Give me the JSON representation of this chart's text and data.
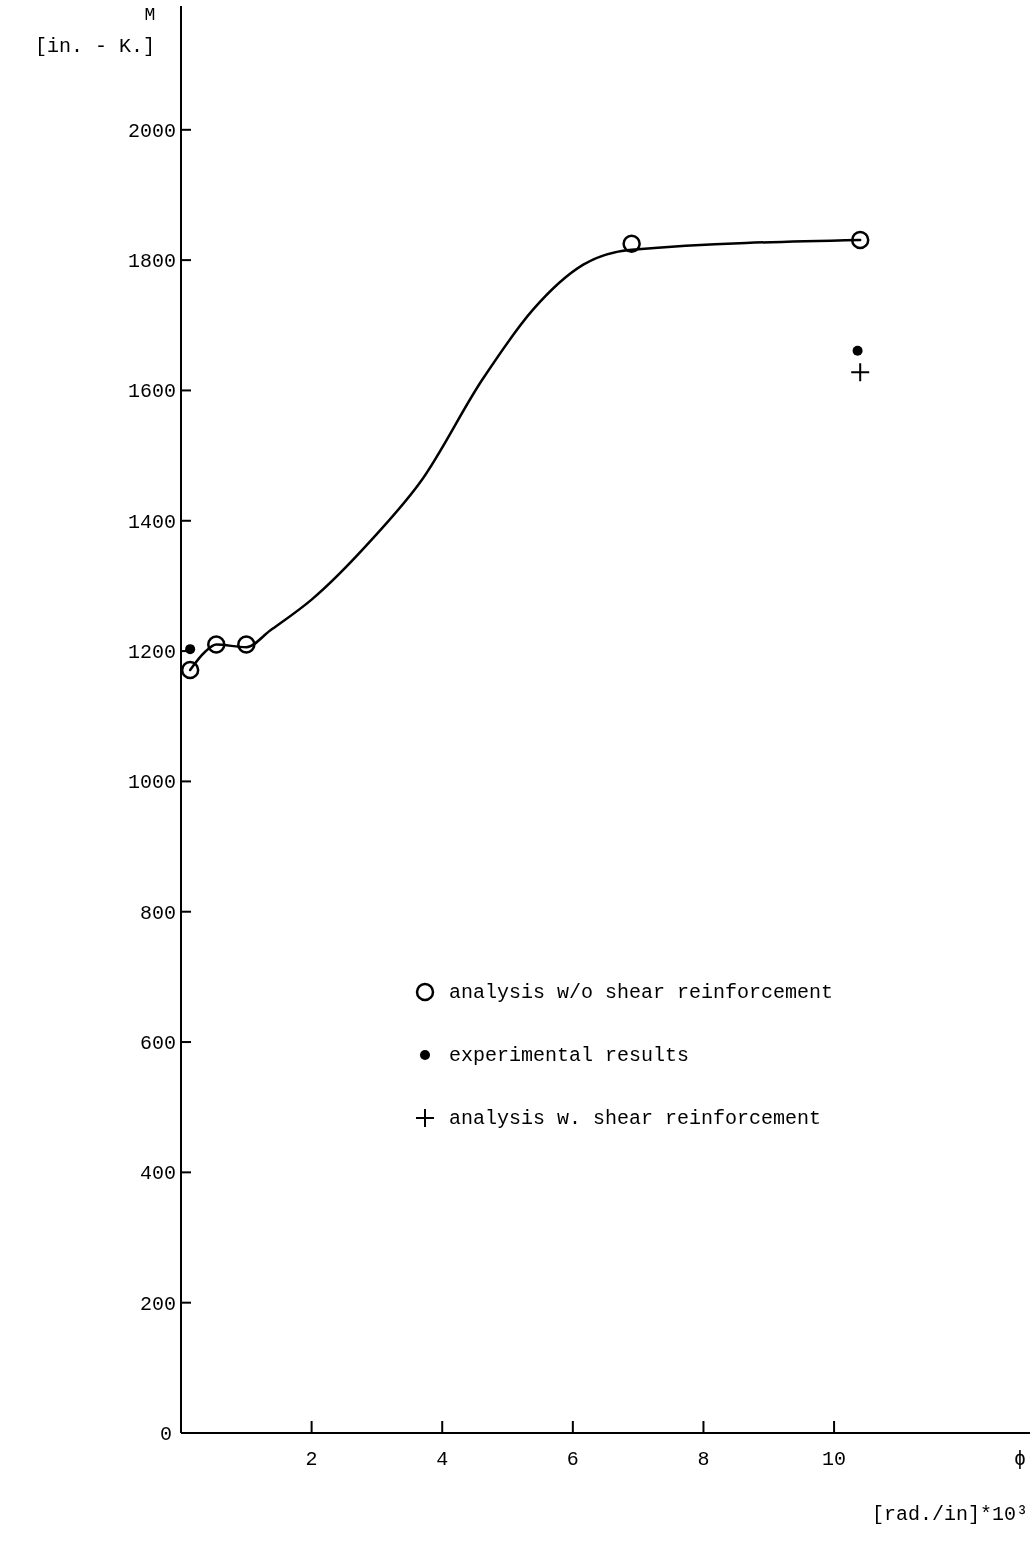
{
  "chart_data": {
    "type": "scatter",
    "xlabel": "ϕ",
    "ylabel": "M",
    "annotations": [
      "[in. - K.]",
      "[rad./in]*10³"
    ],
    "xlim": [
      0,
      13
    ],
    "ylim": [
      0,
      2190
    ],
    "xticks": [
      2,
      4,
      6,
      8,
      10
    ],
    "yticks": [
      0,
      200,
      400,
      600,
      800,
      1000,
      1200,
      1400,
      1600,
      1800,
      2000
    ],
    "grid": false,
    "legend": "right",
    "series": [
      {
        "type": "line",
        "color": "#000000",
        "marker": "none",
        "line_style": "solid",
        "x": [
          0.14,
          0.37,
          0.54,
          1.0,
          1.37,
          2.0,
          2.92,
          3.69,
          4.61,
          5.39,
          6.16,
          6.9,
          10.4
        ],
        "values": [
          1171,
          1199,
          1210,
          1206,
          1232,
          1279,
          1371,
          1463,
          1616,
          1724,
          1793,
          1816,
          1831
        ]
      },
      {
        "name": "analysis w/o shear reinforcement",
        "color": "#000000",
        "marker": "circle",
        "x": [
          0.14,
          0.54,
          1.0,
          6.9,
          10.4
        ],
        "values": [
          1171,
          1210,
          1210,
          1825,
          1831
        ]
      },
      {
        "name": "experimental results",
        "color": "#000000",
        "marker": "dot",
        "x": [
          0.14,
          10.36
        ],
        "values": [
          1203,
          1661
        ]
      },
      {
        "name": "analysis w. shear reinforcement",
        "color": "#000000",
        "marker": "cross",
        "x": [
          10.4
        ],
        "values": [
          1628
        ]
      }
    ]
  }
}
